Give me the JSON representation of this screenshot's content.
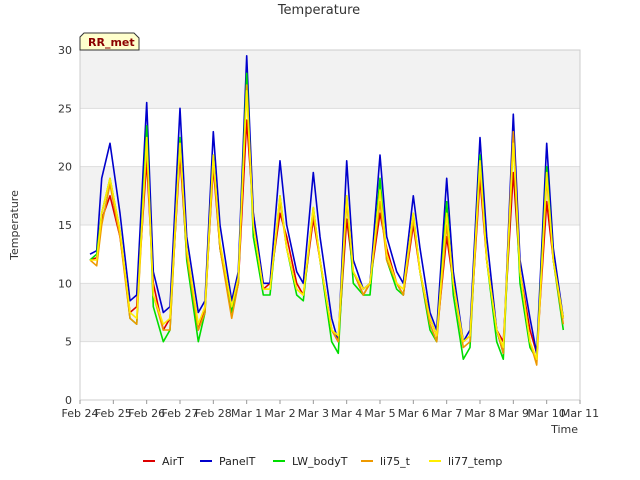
{
  "chart_data": {
    "type": "line",
    "title": "Temperature",
    "xlabel": "Time",
    "ylabel": "Temperature",
    "badge": "RR_met",
    "ylim": [
      0,
      30
    ],
    "yticks": [
      0,
      5,
      10,
      15,
      20,
      25,
      30
    ],
    "xlim": [
      0,
      15
    ],
    "xticks": [
      {
        "x": 0,
        "label": "Feb 24"
      },
      {
        "x": 1,
        "label": "Feb 25"
      },
      {
        "x": 2,
        "label": "Feb 26"
      },
      {
        "x": 3,
        "label": "Feb 27"
      },
      {
        "x": 4,
        "label": "Feb 28"
      },
      {
        "x": 5,
        "label": "Mar 1"
      },
      {
        "x": 6,
        "label": "Mar 2"
      },
      {
        "x": 7,
        "label": "Mar 3"
      },
      {
        "x": 8,
        "label": "Mar 4"
      },
      {
        "x": 9,
        "label": "Mar 5"
      },
      {
        "x": 10,
        "label": "Mar 6"
      },
      {
        "x": 11,
        "label": "Mar 7"
      },
      {
        "x": 12,
        "label": "Mar 8"
      },
      {
        "x": 13,
        "label": "Mar 9"
      },
      {
        "x": 14,
        "label": "Mar 10"
      },
      {
        "x": 15,
        "label": "Mar 11"
      }
    ],
    "grid": true,
    "legend_position": "bottom",
    "series": [
      {
        "name": "AirT",
        "color": "#dd0000",
        "x": [
          0.3,
          0.5,
          0.65,
          0.9,
          1.2,
          1.5,
          1.7,
          2.0,
          2.2,
          2.5,
          2.7,
          3.0,
          3.2,
          3.55,
          3.75,
          4.0,
          4.2,
          4.55,
          4.75,
          5.0,
          5.2,
          5.5,
          5.7,
          6.0,
          6.2,
          6.5,
          6.7,
          7.0,
          7.2,
          7.55,
          7.75,
          8.0,
          8.2,
          8.5,
          8.7,
          9.0,
          9.2,
          9.5,
          9.7,
          10.0,
          10.2,
          10.5,
          10.7,
          11.0,
          11.2,
          11.5,
          11.7,
          12.0,
          12.2,
          12.5,
          12.7,
          13.0,
          13.2,
          13.5,
          13.7,
          14.0,
          14.2,
          14.5
        ],
        "y": [
          12,
          12.2,
          15.5,
          17.5,
          14,
          7.5,
          8,
          20.5,
          10,
          6,
          7,
          21,
          12.5,
          6,
          8,
          20,
          13,
          7.5,
          10,
          24,
          16,
          9.5,
          10,
          16,
          14,
          10,
          9,
          15.5,
          12,
          6,
          5,
          15.5,
          11,
          9,
          10,
          16,
          13,
          10,
          9,
          15,
          11,
          7,
          5.5,
          14,
          10,
          5,
          5.5,
          19,
          12,
          6,
          5,
          19.5,
          11,
          6,
          4,
          17,
          12,
          7
        ]
      },
      {
        "name": "PanelT",
        "color": "#0000cc",
        "x": [
          0.3,
          0.5,
          0.65,
          0.9,
          1.2,
          1.5,
          1.7,
          2.0,
          2.2,
          2.5,
          2.7,
          3.0,
          3.2,
          3.55,
          3.75,
          4.0,
          4.2,
          4.55,
          4.75,
          5.0,
          5.2,
          5.5,
          5.7,
          6.0,
          6.2,
          6.5,
          6.7,
          7.0,
          7.2,
          7.55,
          7.75,
          8.0,
          8.2,
          8.5,
          8.7,
          9.0,
          9.2,
          9.5,
          9.7,
          10.0,
          10.2,
          10.5,
          10.7,
          11.0,
          11.2,
          11.5,
          11.7,
          12.0,
          12.2,
          12.5,
          12.7,
          13.0,
          13.2,
          13.5,
          13.7,
          14.0,
          14.2,
          14.5
        ],
        "y": [
          12.5,
          12.8,
          19,
          22,
          16,
          8.5,
          9,
          25.5,
          11,
          7.5,
          8,
          25,
          14,
          7.5,
          8.5,
          23,
          15,
          8.5,
          11,
          29.5,
          16,
          10,
          10,
          20.5,
          15,
          11,
          10,
          19.5,
          14,
          7,
          5,
          20.5,
          12,
          9.5,
          10,
          21,
          14,
          11,
          10,
          17.5,
          13,
          7.5,
          6,
          19,
          11,
          5,
          6,
          22.5,
          14,
          6,
          4,
          24.5,
          12,
          7,
          4,
          22,
          13,
          7
        ]
      },
      {
        "name": "LW_bodyT",
        "color": "#00dd00",
        "x": [
          0.3,
          0.5,
          0.65,
          0.9,
          1.2,
          1.5,
          1.7,
          2.0,
          2.2,
          2.5,
          2.7,
          3.0,
          3.2,
          3.55,
          3.75,
          4.0,
          4.2,
          4.55,
          4.75,
          5.0,
          5.2,
          5.5,
          5.7,
          6.0,
          6.2,
          6.5,
          6.7,
          7.0,
          7.2,
          7.55,
          7.75,
          8.0,
          8.2,
          8.5,
          8.7,
          9.0,
          9.2,
          9.5,
          9.7,
          10.0,
          10.2,
          10.5,
          10.7,
          11.0,
          11.2,
          11.5,
          11.7,
          12.0,
          12.2,
          12.5,
          12.7,
          13.0,
          13.2,
          13.5,
          13.7,
          14.0,
          14.2,
          14.5
        ],
        "y": [
          12,
          12.5,
          16,
          19,
          14.5,
          7,
          6.5,
          23.5,
          8,
          5,
          6,
          22.5,
          12,
          5,
          7.5,
          21,
          13,
          7.5,
          10,
          28,
          14,
          9,
          9,
          17.5,
          13,
          9,
          8.5,
          16.5,
          12,
          5,
          4,
          17.5,
          10,
          9,
          9,
          19,
          12,
          9.5,
          9,
          16,
          11,
          6,
          5,
          17,
          9,
          3.5,
          4.5,
          21,
          12,
          5,
          3.5,
          22.5,
          10,
          4.5,
          3.5,
          20,
          12,
          6
        ]
      },
      {
        "name": "li75_t",
        "color": "#ee9900",
        "x": [
          0.3,
          0.5,
          0.65,
          0.9,
          1.2,
          1.5,
          1.7,
          2.0,
          2.2,
          2.5,
          2.7,
          3.0,
          3.2,
          3.55,
          3.75,
          4.0,
          4.2,
          4.55,
          4.75,
          5.0,
          5.2,
          5.5,
          5.7,
          6.0,
          6.2,
          6.5,
          6.7,
          7.0,
          7.2,
          7.55,
          7.75,
          8.0,
          8.2,
          8.5,
          8.7,
          9.0,
          9.2,
          9.5,
          9.7,
          10.0,
          10.2,
          10.5,
          10.7,
          11.0,
          11.2,
          11.5,
          11.7,
          12.0,
          12.2,
          12.5,
          12.7,
          13.0,
          13.2,
          13.5,
          13.7,
          14.0,
          14.2,
          14.5
        ],
        "y": [
          12,
          11.5,
          15,
          18.5,
          14,
          7,
          6.5,
          22,
          9,
          6,
          6,
          22,
          12.5,
          6,
          7.5,
          20.5,
          13,
          7,
          10,
          27,
          15,
          9.5,
          9.5,
          17,
          13,
          9.5,
          9,
          16,
          12,
          6,
          5,
          17,
          11,
          9,
          10,
          17,
          12,
          10,
          9,
          15.5,
          11,
          6.5,
          5,
          15,
          10,
          4.5,
          5,
          20,
          12,
          6,
          4,
          23,
          11,
          5,
          3,
          19,
          12,
          6.5
        ]
      },
      {
        "name": "li77_temp",
        "color": "#ffee00",
        "x": [
          0.3,
          0.5,
          0.65,
          0.9,
          1.2,
          1.5,
          1.7,
          2.0,
          2.2,
          2.5,
          2.7,
          3.0,
          3.2,
          3.55,
          3.75,
          4.0,
          4.2,
          4.55,
          4.75,
          5.0,
          5.2,
          5.5,
          5.7,
          6.0,
          6.2,
          6.5,
          6.7,
          7.0,
          7.2,
          7.55,
          7.75,
          8.0,
          8.2,
          8.5,
          8.7,
          9.0,
          9.2,
          9.5,
          9.7,
          10.0,
          10.2,
          10.5,
          10.7,
          11.0,
          11.2,
          11.5,
          11.7,
          12.0,
          12.2,
          12.5,
          12.7,
          13.0,
          13.2,
          13.5,
          13.7,
          14.0,
          14.2,
          14.5
        ],
        "y": [
          12,
          12,
          16,
          19,
          14.5,
          7.5,
          7,
          22.5,
          9,
          6.5,
          7,
          22,
          13,
          6.5,
          8,
          21,
          13.5,
          8,
          10.5,
          26.5,
          15,
          9.5,
          9.5,
          17.5,
          13,
          9.5,
          9,
          16.5,
          12,
          6,
          5.5,
          17.5,
          11,
          9.5,
          10,
          18,
          12.5,
          10,
          9.5,
          16,
          11,
          7,
          5.5,
          16,
          10,
          5,
          5.5,
          20.5,
          12,
          6,
          4.5,
          22,
          11,
          5,
          3.5,
          19.5,
          12,
          7
        ]
      }
    ]
  }
}
